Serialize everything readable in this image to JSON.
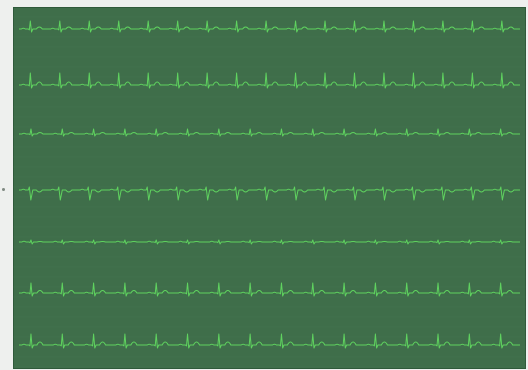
{
  "colors": {
    "screen_background": "#3f6e4a",
    "trace": "#5fd35f",
    "grid": "#4c7a56"
  },
  "display": {
    "traces": [
      {
        "beats": 17
      },
      {
        "beats": 17
      },
      {
        "beats": 16
      },
      {
        "beats": 17
      },
      {
        "beats": 16
      },
      {
        "beats": 16
      },
      {
        "beats": 16
      }
    ]
  }
}
